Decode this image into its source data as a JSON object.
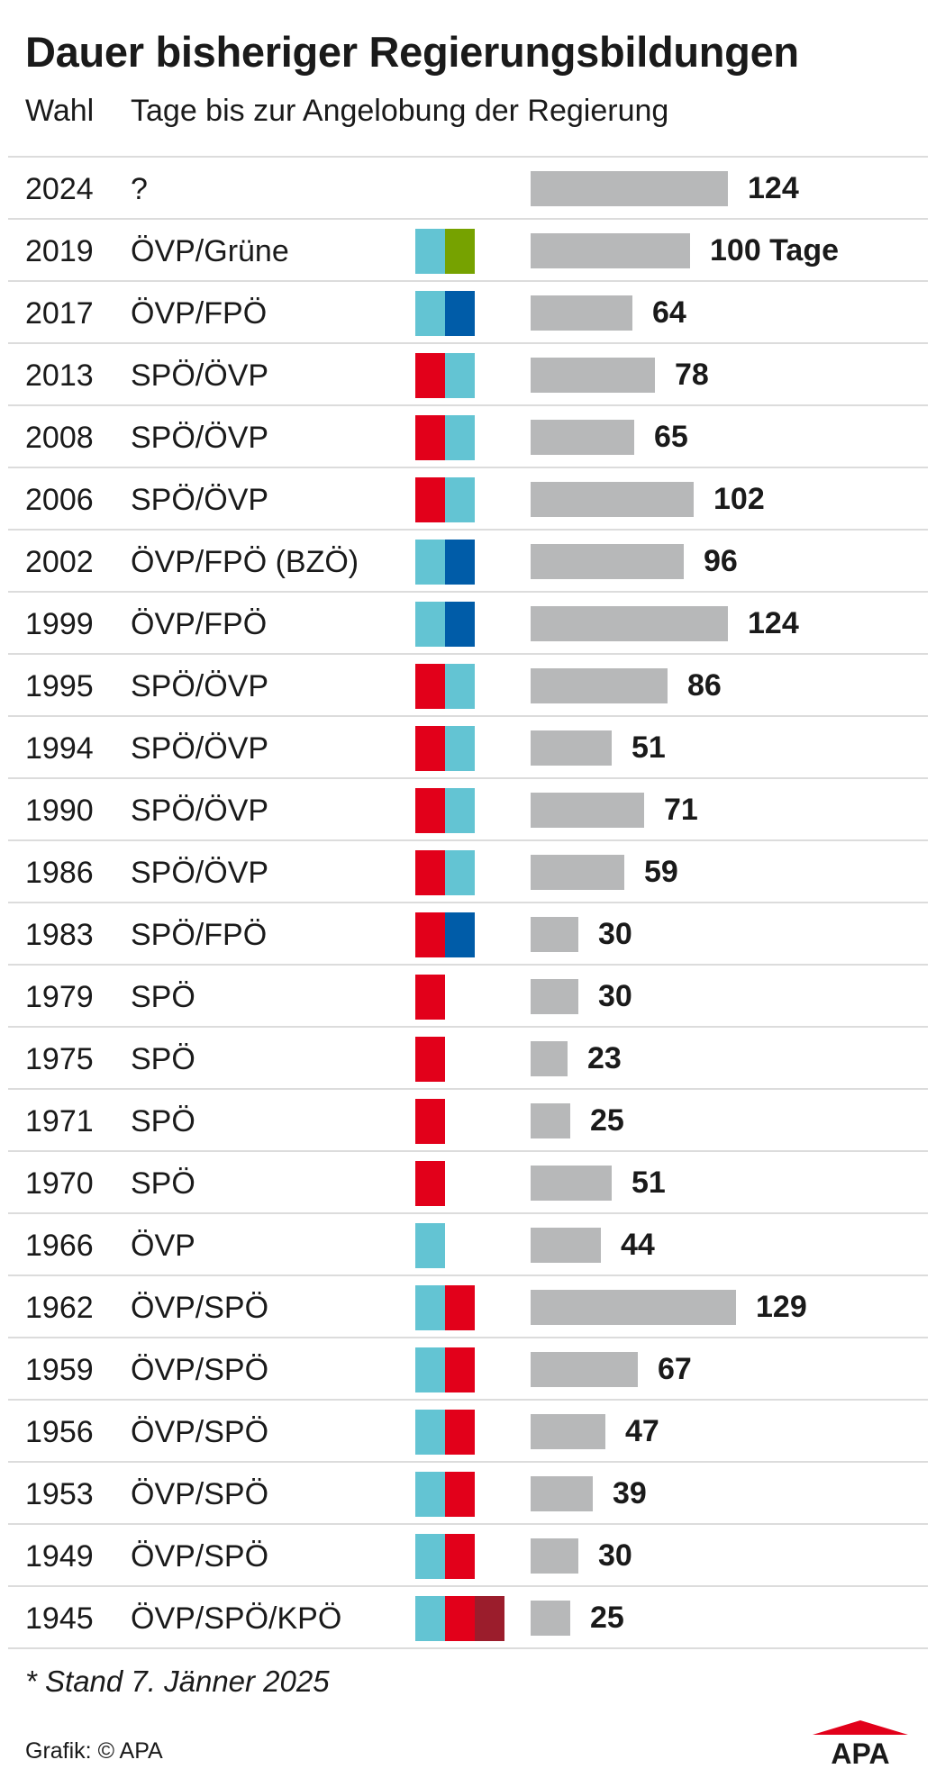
{
  "title": "Dauer bisheriger Regierungsbildungen",
  "header": {
    "col_wahl": "Wahl",
    "col_tage": "Tage bis zur Angelobung der Regierung"
  },
  "colors": {
    "ÖVP": "#63c4d3",
    "SPÖ": "#e2001a",
    "FPÖ": "#005ca8",
    "Grüne": "#76a200",
    "KPÖ": "#9b1d2c",
    "bar": "#b7b8b9",
    "accent": "#e2001a"
  },
  "chart_data": {
    "type": "bar",
    "orientation": "horizontal",
    "title": "Dauer bisheriger Regierungsbildungen",
    "xlabel": "Tage bis zur Angelobung der Regierung",
    "ylabel": "Wahl",
    "xlim": [
      0,
      130
    ],
    "grid": false,
    "rows": [
      {
        "year": "2024",
        "coalition": "?",
        "parties": [],
        "value": 124,
        "label": "124"
      },
      {
        "year": "2019",
        "coalition": "ÖVP/Grüne",
        "parties": [
          "ÖVP",
          "Grüne"
        ],
        "value": 100,
        "label": "100 Tage"
      },
      {
        "year": "2017",
        "coalition": "ÖVP/FPÖ",
        "parties": [
          "ÖVP",
          "FPÖ"
        ],
        "value": 64,
        "label": "64"
      },
      {
        "year": "2013",
        "coalition": "SPÖ/ÖVP",
        "parties": [
          "SPÖ",
          "ÖVP"
        ],
        "value": 78,
        "label": "78"
      },
      {
        "year": "2008",
        "coalition": "SPÖ/ÖVP",
        "parties": [
          "SPÖ",
          "ÖVP"
        ],
        "value": 65,
        "label": "65"
      },
      {
        "year": "2006",
        "coalition": "SPÖ/ÖVP",
        "parties": [
          "SPÖ",
          "ÖVP"
        ],
        "value": 102,
        "label": "102"
      },
      {
        "year": "2002",
        "coalition": "ÖVP/FPÖ (BZÖ)",
        "parties": [
          "ÖVP",
          "FPÖ"
        ],
        "value": 96,
        "label": "96"
      },
      {
        "year": "1999",
        "coalition": "ÖVP/FPÖ",
        "parties": [
          "ÖVP",
          "FPÖ"
        ],
        "value": 124,
        "label": "124"
      },
      {
        "year": "1995",
        "coalition": "SPÖ/ÖVP",
        "parties": [
          "SPÖ",
          "ÖVP"
        ],
        "value": 86,
        "label": "86"
      },
      {
        "year": "1994",
        "coalition": "SPÖ/ÖVP",
        "parties": [
          "SPÖ",
          "ÖVP"
        ],
        "value": 51,
        "label": "51"
      },
      {
        "year": "1990",
        "coalition": "SPÖ/ÖVP",
        "parties": [
          "SPÖ",
          "ÖVP"
        ],
        "value": 71,
        "label": "71"
      },
      {
        "year": "1986",
        "coalition": "SPÖ/ÖVP",
        "parties": [
          "SPÖ",
          "ÖVP"
        ],
        "value": 59,
        "label": "59"
      },
      {
        "year": "1983",
        "coalition": "SPÖ/FPÖ",
        "parties": [
          "SPÖ",
          "FPÖ"
        ],
        "value": 30,
        "label": "30"
      },
      {
        "year": "1979",
        "coalition": "SPÖ",
        "parties": [
          "SPÖ"
        ],
        "value": 30,
        "label": "30"
      },
      {
        "year": "1975",
        "coalition": "SPÖ",
        "parties": [
          "SPÖ"
        ],
        "value": 23,
        "label": "23"
      },
      {
        "year": "1971",
        "coalition": "SPÖ",
        "parties": [
          "SPÖ"
        ],
        "value": 25,
        "label": "25"
      },
      {
        "year": "1970",
        "coalition": "SPÖ",
        "parties": [
          "SPÖ"
        ],
        "value": 51,
        "label": "51"
      },
      {
        "year": "1966",
        "coalition": "ÖVP",
        "parties": [
          "ÖVP"
        ],
        "value": 44,
        "label": "44"
      },
      {
        "year": "1962",
        "coalition": "ÖVP/SPÖ",
        "parties": [
          "ÖVP",
          "SPÖ"
        ],
        "value": 129,
        "label": "129"
      },
      {
        "year": "1959",
        "coalition": "ÖVP/SPÖ",
        "parties": [
          "ÖVP",
          "SPÖ"
        ],
        "value": 67,
        "label": "67"
      },
      {
        "year": "1956",
        "coalition": "ÖVP/SPÖ",
        "parties": [
          "ÖVP",
          "SPÖ"
        ],
        "value": 47,
        "label": "47"
      },
      {
        "year": "1953",
        "coalition": "ÖVP/SPÖ",
        "parties": [
          "ÖVP",
          "SPÖ"
        ],
        "value": 39,
        "label": "39"
      },
      {
        "year": "1949",
        "coalition": "ÖVP/SPÖ",
        "parties": [
          "ÖVP",
          "SPÖ"
        ],
        "value": 30,
        "label": "30"
      },
      {
        "year": "1945",
        "coalition": "ÖVP/SPÖ/KPÖ",
        "parties": [
          "ÖVP",
          "SPÖ",
          "KPÖ"
        ],
        "value": 25,
        "label": "25"
      }
    ]
  },
  "footnote": "* Stand 7. Jänner 2025",
  "credit": "Grafik: © APA",
  "logo": {
    "text": "APA",
    "icon": "apa-logo"
  }
}
